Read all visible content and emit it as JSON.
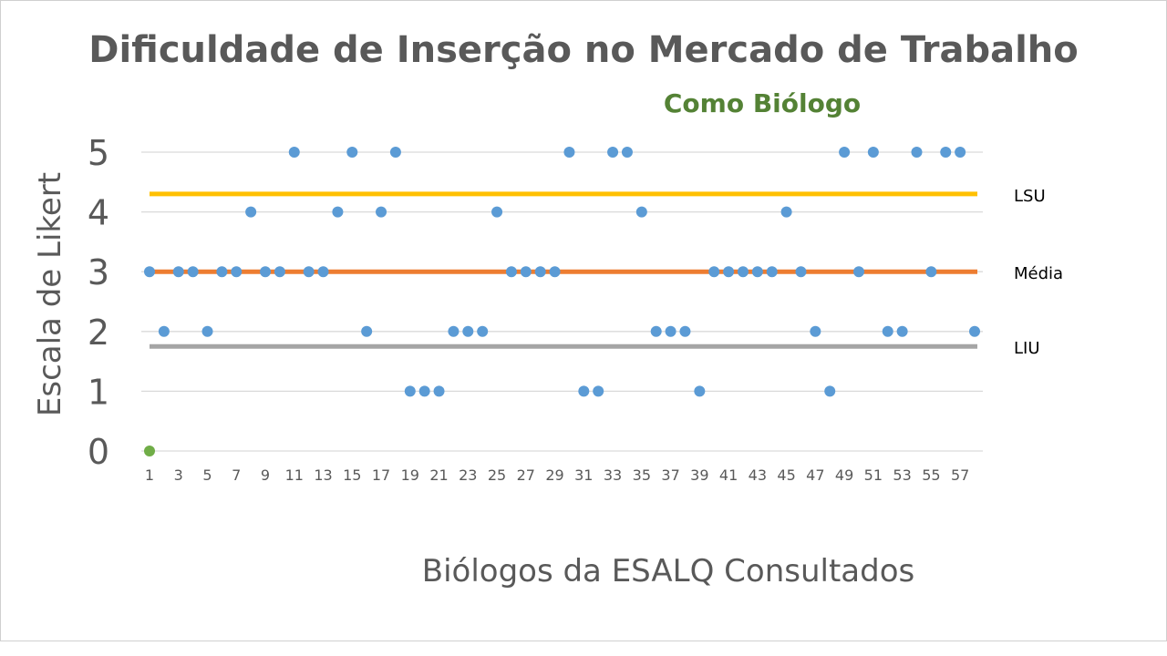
{
  "chart_data": {
    "type": "scatter",
    "title": "Dificuldade de Inserção no Mercado de Trabalho",
    "subtitle": "Como Biólogo",
    "xlabel": "Biólogos da ESALQ Consultados",
    "ylabel": "Escala de Likert",
    "xlim": [
      1,
      58
    ],
    "ylim": [
      0,
      5
    ],
    "yticks": [
      "0",
      "1",
      "2",
      "3",
      "4",
      "5"
    ],
    "xticks": [
      "1",
      "3",
      "5",
      "7",
      "9",
      "11",
      "13",
      "15",
      "17",
      "19",
      "21",
      "23",
      "25",
      "27",
      "29",
      "31",
      "33",
      "35",
      "37",
      "39",
      "41",
      "43",
      "45",
      "47",
      "49",
      "51",
      "53",
      "55",
      "57"
    ],
    "grid": true,
    "series": [
      {
        "color": "#5b9bd5",
        "x": [
          1,
          2,
          3,
          4,
          5,
          6,
          7,
          8,
          9,
          10,
          11,
          12,
          13,
          14,
          15,
          16,
          17,
          18,
          19,
          20,
          21,
          22,
          23,
          24,
          25,
          26,
          27,
          28,
          29,
          30,
          31,
          32,
          33,
          34,
          35,
          36,
          37,
          38,
          39,
          40,
          41,
          42,
          43,
          44,
          45,
          46,
          47,
          48,
          49,
          50,
          51,
          52,
          53,
          54,
          55,
          56,
          57,
          58
        ],
        "y": [
          3,
          2,
          3,
          3,
          2,
          3,
          3,
          4,
          3,
          3,
          5,
          3,
          3,
          4,
          5,
          2,
          4,
          5,
          1,
          1,
          1,
          2,
          2,
          2,
          4,
          3,
          3,
          3,
          3,
          5,
          1,
          1,
          5,
          5,
          4,
          2,
          2,
          2,
          1,
          3,
          3,
          3,
          3,
          3,
          4,
          3,
          2,
          1,
          5,
          3,
          5,
          2,
          2,
          5,
          3,
          5,
          5,
          2
        ]
      },
      {
        "color": "#70ad47",
        "x": [
          1
        ],
        "y": [
          0
        ]
      }
    ],
    "reference_lines": [
      {
        "name": "LSU",
        "value": 4.3,
        "color": "#ffc000"
      },
      {
        "name": "Média",
        "value": 3.0,
        "color": "#ed7d31"
      },
      {
        "name": "LIU",
        "value": 1.75,
        "color": "#a5a5a5"
      }
    ]
  }
}
